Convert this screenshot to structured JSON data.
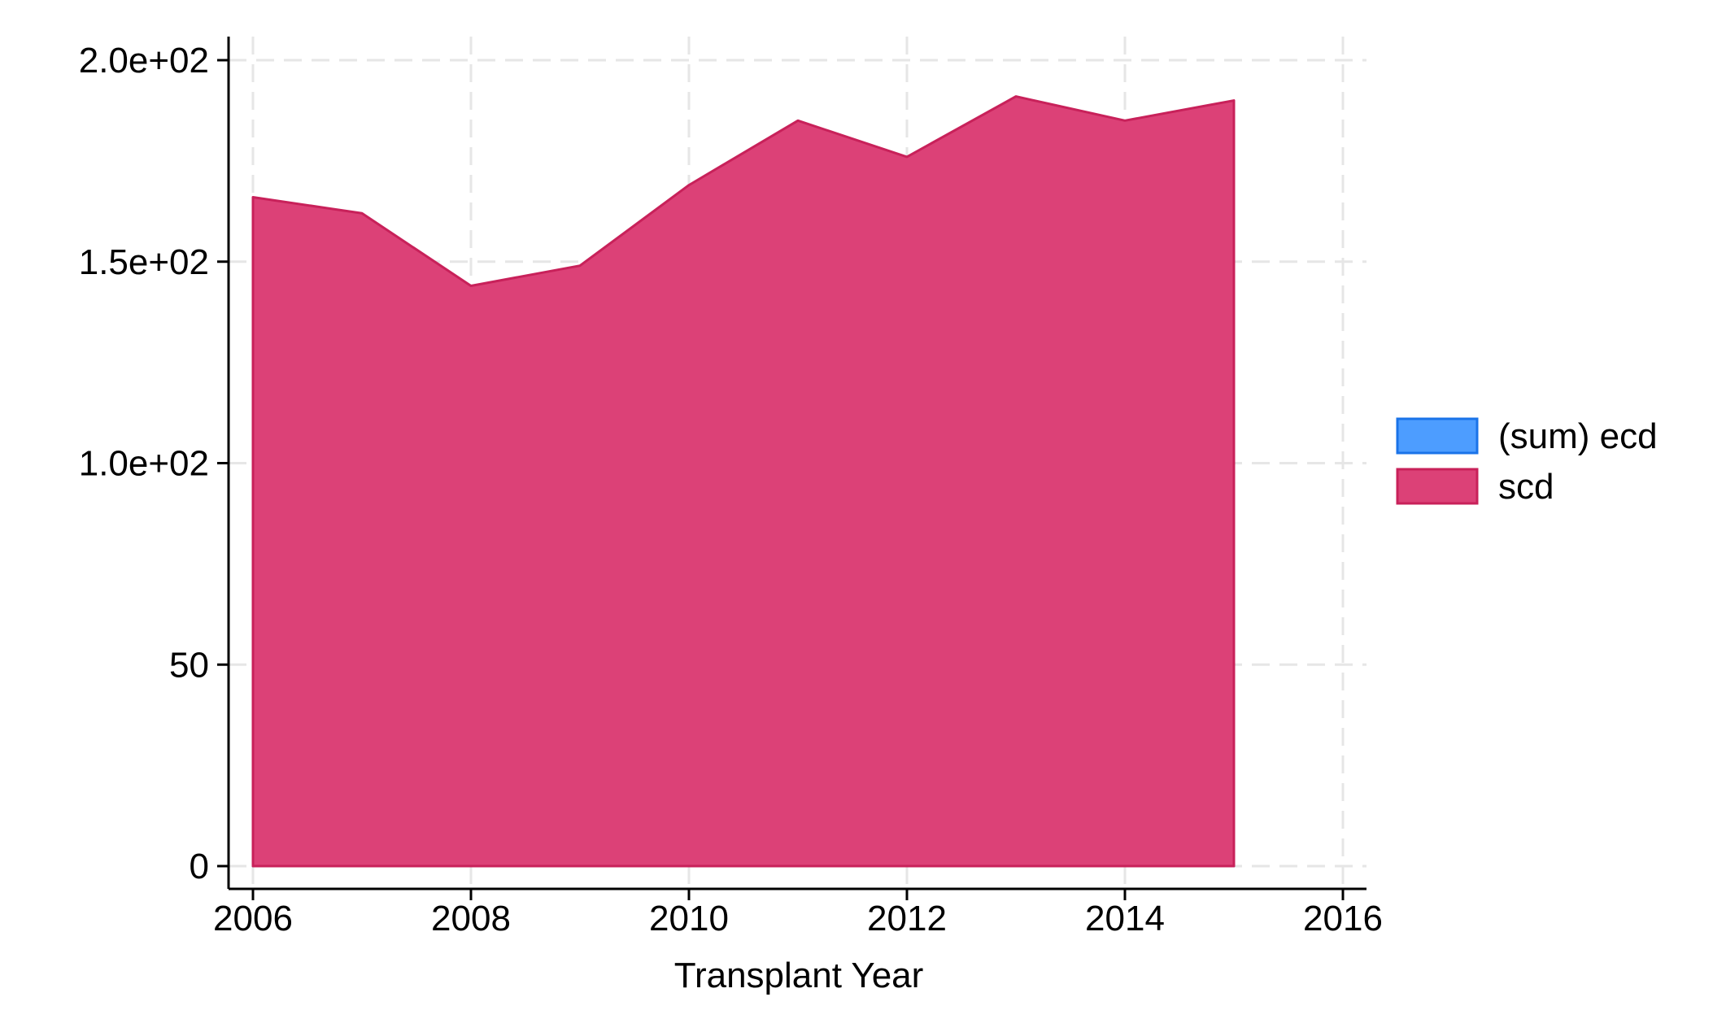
{
  "chart_data": {
    "type": "area",
    "xlabel": "Transplant Year",
    "ylabel": "",
    "x": [
      2006,
      2007,
      2008,
      2009,
      2010,
      2011,
      2012,
      2013,
      2014,
      2015
    ],
    "xlim": [
      2006,
      2016
    ],
    "ylim": [
      0,
      200
    ],
    "xticks": [
      2006,
      2008,
      2010,
      2012,
      2014,
      2016
    ],
    "xtick_labels": [
      "2006",
      "2008",
      "2010",
      "2012",
      "2014",
      "2016"
    ],
    "yticks": [
      0,
      50,
      100,
      150,
      200
    ],
    "ytick_labels": [
      "0",
      "50",
      "1.0e+02",
      "1.5e+02",
      "2.0e+02"
    ],
    "grid": true,
    "legend_position": "right",
    "series": [
      {
        "name": "(sum) ecd",
        "color": "#4d9dff",
        "edge_color": "#1a73e8",
        "values": [
          0,
          0,
          0,
          0,
          0,
          0,
          0,
          0,
          0,
          0
        ]
      },
      {
        "name": "scd",
        "color": "#dc4177",
        "edge_color": "#c8215a",
        "values": [
          166,
          162,
          144,
          149,
          169,
          185,
          176,
          191,
          185,
          190
        ]
      }
    ]
  }
}
